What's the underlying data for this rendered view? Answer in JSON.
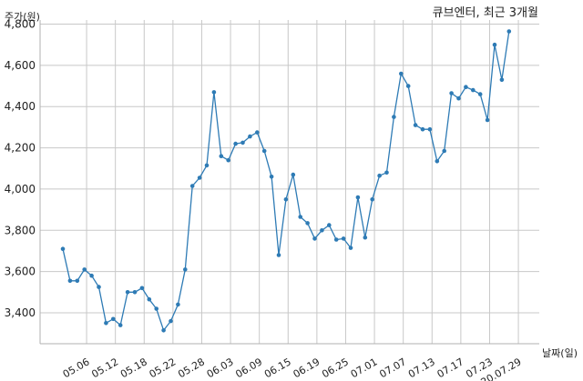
{
  "chart_data": {
    "type": "line",
    "title": "큐브엔터, 최근 3개월",
    "ylabel": "주가(원)",
    "xlabel": "날짜(일)",
    "ylim": [
      3250,
      4820
    ],
    "yticks": [
      3400,
      3600,
      3800,
      4000,
      4200,
      4400,
      4600,
      4800
    ],
    "ytick_labels": [
      "3,400",
      "3,600",
      "3,800",
      "4,000",
      "4,200",
      "4,400",
      "4,600",
      "4,800"
    ],
    "xtick_labels": [
      "05.06",
      "05.12",
      "05.18",
      "05.22",
      "05.28",
      "06.03",
      "06.09",
      "06.15",
      "06.19",
      "06.25",
      "07.01",
      "07.07",
      "07.13",
      "07.17",
      "07.23",
      "20.07.29"
    ],
    "xtick_indices": [
      3.3,
      7.3,
      11.3,
      15.3,
      19.3,
      23.3,
      27.3,
      31.3,
      35.3,
      39.3,
      43.3,
      47.3,
      51.3,
      55.3,
      59.3,
      63.3
    ],
    "values": [
      3710,
      3555,
      3555,
      3610,
      3580,
      3525,
      3350,
      3370,
      3340,
      3500,
      3500,
      3520,
      3465,
      3420,
      3315,
      3360,
      3440,
      3610,
      4015,
      4055,
      4115,
      4470,
      4160,
      4140,
      4220,
      4225,
      4255,
      4275,
      4185,
      4060,
      3680,
      3950,
      4070,
      3865,
      3835,
      3760,
      3800,
      3825,
      3755,
      3760,
      3715,
      3960,
      3765,
      3950,
      4065,
      4080,
      4350,
      4560,
      4500,
      4310,
      4290,
      4290,
      4135,
      4185,
      4465,
      4440,
      4495,
      4480,
      4460,
      4335,
      4700,
      4530,
      4765
    ],
    "grid": true,
    "color": "#2e7bb5"
  }
}
